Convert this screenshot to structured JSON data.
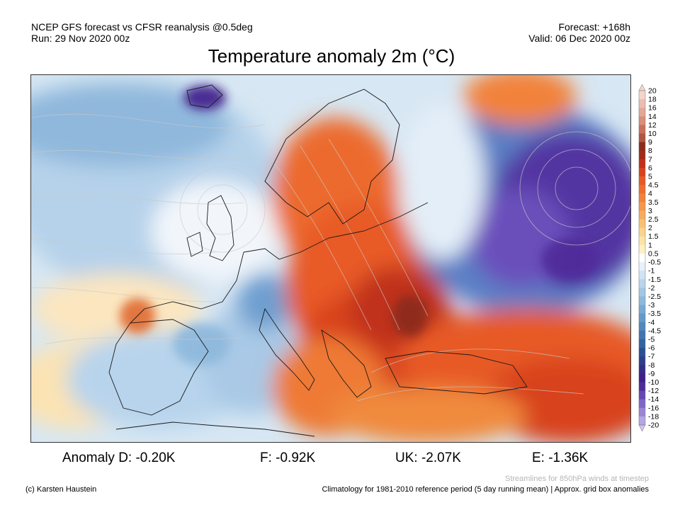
{
  "header": {
    "left_line1": "NCEP GFS forecast vs CFSR reanalysis @0.5deg",
    "left_line2": "Run: 29 Nov 2020 00z",
    "right_line1": "Forecast: +168h",
    "right_line2": "Valid: 06 Dec 2020 00z"
  },
  "title": "Temperature anomaly 2m (°C)",
  "colorbar": {
    "labels": [
      "20",
      "18",
      "16",
      "14",
      "12",
      "10",
      "9",
      "8",
      "7",
      "6",
      "5",
      "4.5",
      "4",
      "3.5",
      "3",
      "2.5",
      "2",
      "1.5",
      "1",
      "0.5",
      "-0.5",
      "-1",
      "-1.5",
      "-2",
      "-2.5",
      "-3",
      "-3.5",
      "-4",
      "-4.5",
      "-5",
      "-6",
      "-7",
      "-8",
      "-9",
      "-10",
      "-12",
      "-14",
      "-16",
      "-18",
      "-20"
    ],
    "colors": [
      "#f3d6cc",
      "#ebbdb0",
      "#e3a796",
      "#d98f7c",
      "#c9705c",
      "#b35543",
      "#8a2b1b",
      "#a32a16",
      "#c0321a",
      "#d8421e",
      "#e75a26",
      "#ee6d2e",
      "#f2823a",
      "#f5974c",
      "#f7ab5e",
      "#f9c074",
      "#fad48c",
      "#fbe4a6",
      "#fcf0c4",
      "#ffffff",
      "#e6f1fa",
      "#cfe3f3",
      "#b8d5ec",
      "#a2c7e4",
      "#8db8dc",
      "#78a9d3",
      "#6499c9",
      "#5188bd",
      "#4076af",
      "#3363a1",
      "#2b4f93",
      "#2c3f8a",
      "#332d88",
      "#3f1f8a",
      "#4f2a9a",
      "#6647b2",
      "#7f66c6",
      "#9985d5",
      "#b3a6e2",
      "#cdc5ee"
    ]
  },
  "anomalies": {
    "d": "Anomaly D: -0.20K",
    "f": "F: -0.92K",
    "uk": "UK: -2.07K",
    "e": "E: -1.36K"
  },
  "footer": {
    "streamlines_note": "Streamlines for 850hPa winds at timestep",
    "credit": "(c) Karsten Haustein",
    "climatology": "Climatology for 1981-2010 reference period (5 day running mean) | Approx. grid box anomalies"
  }
}
